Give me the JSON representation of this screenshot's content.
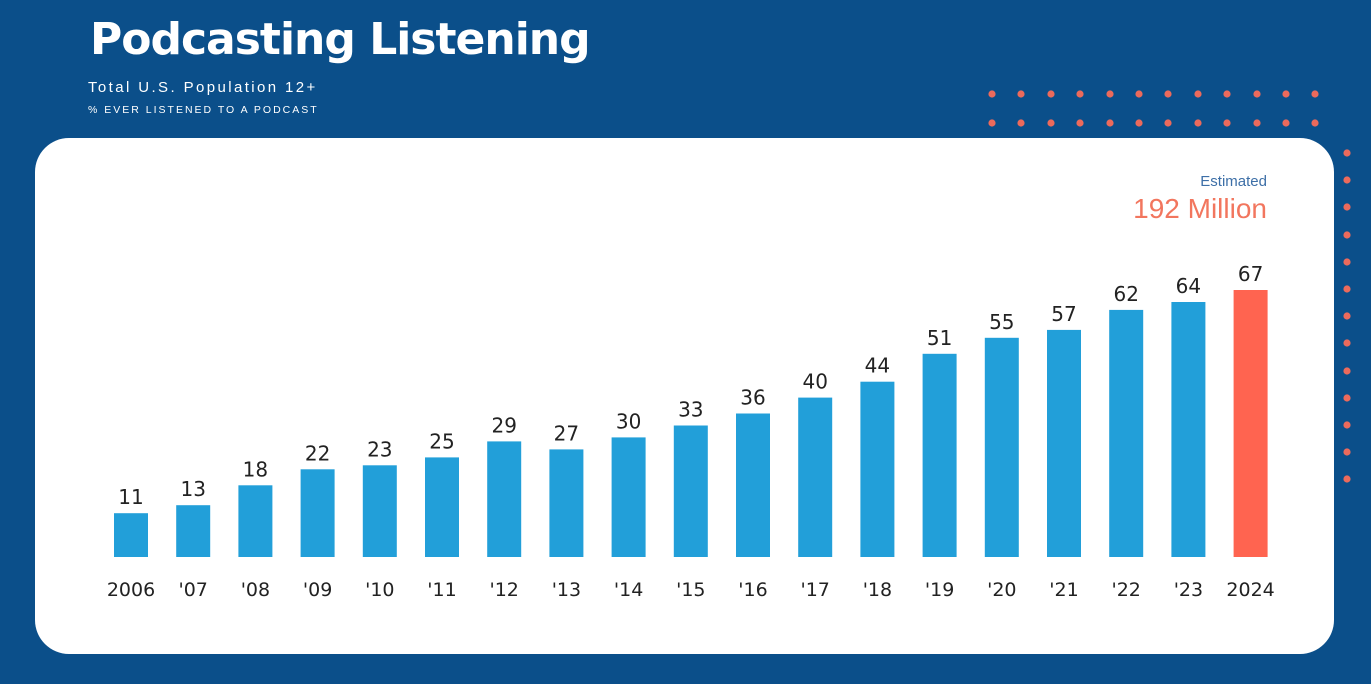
{
  "header": {
    "title": "Podcasting Listening",
    "subtitle": "Total U.S. Population 12+",
    "subtitle2": "% EVER LISTENED TO A PODCAST"
  },
  "estimate": {
    "label": "Estimated",
    "value": "192 Million"
  },
  "colors": {
    "background": "#0b4f8a",
    "bar": "#229fd9",
    "highlight_bar": "#ff6450",
    "dots": "#ec6a5c",
    "card": "#ffffff"
  },
  "chart_data": {
    "type": "bar",
    "categories": [
      "2006",
      "'07",
      "'08",
      "'09",
      "'10",
      "'11",
      "'12",
      "'13",
      "'14",
      "'15",
      "'16",
      "'17",
      "'18",
      "'19",
      "'20",
      "'21",
      "'22",
      "'23",
      "2024"
    ],
    "values": [
      11,
      13,
      18,
      22,
      23,
      25,
      29,
      27,
      30,
      33,
      36,
      40,
      44,
      51,
      55,
      57,
      62,
      64,
      67
    ],
    "highlight_category": "2024",
    "title": "Podcasting Listening",
    "subtitle": "Total U.S. Population 12+",
    "ylabel": "% EVER LISTENED TO A PODCAST",
    "ylim": [
      0,
      67
    ],
    "grid": false,
    "data_labels": true
  }
}
